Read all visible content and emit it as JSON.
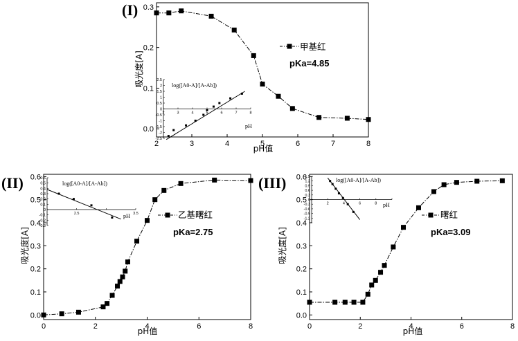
{
  "chart_data": [
    {
      "type": "line",
      "panel_label": "(I)",
      "xlabel": "pH值",
      "ylabel": "吸光度[A]",
      "xlim": [
        2,
        8
      ],
      "ylim": [
        -0.02,
        0.31
      ],
      "xticks": [
        2,
        3,
        4,
        5,
        6,
        7,
        8
      ],
      "yticks": [
        0.0,
        0.1,
        0.2,
        0.3
      ],
      "ytick_labels": [
        "0.0",
        "0.1",
        "0.2",
        "0.3"
      ],
      "legend": [
        "甲基红"
      ],
      "annotation": "pKa=4.85",
      "series": [
        {
          "name": "甲基红",
          "x": [
            2.0,
            2.35,
            2.7,
            3.55,
            4.2,
            4.75,
            5.0,
            5.45,
            5.85,
            6.6,
            7.4,
            8.0
          ],
          "y": [
            0.285,
            0.285,
            0.29,
            0.277,
            0.243,
            0.18,
            0.11,
            0.08,
            0.05,
            0.028,
            0.026,
            0.023
          ]
        }
      ],
      "inset": {
        "ylabel": "log([A0-A]/[A-Ab])",
        "xlabel": "pH",
        "xlim": [
          2,
          8
        ],
        "ylim": [
          -2.5,
          2.5
        ],
        "xticks": [
          2,
          3,
          4,
          5,
          6,
          7,
          8
        ],
        "yticks": [
          -2.5,
          -2.0,
          -1.5,
          -1.0,
          -0.5,
          0.0,
          0.5,
          1.0,
          1.5,
          2.0,
          2.5
        ],
        "points": {
          "x": [
            2.35,
            2.7,
            3.55,
            4.2,
            4.75,
            5.0,
            5.45,
            5.85,
            6.6,
            7.4
          ],
          "y": [
            -2.3,
            -1.8,
            -1.4,
            -1.0,
            -0.5,
            -0.1,
            0.2,
            0.5,
            0.9,
            1.3
          ]
        },
        "fit": {
          "x": [
            2.2,
            7.6
          ],
          "y": [
            -2.6,
            1.5
          ]
        }
      }
    },
    {
      "type": "line",
      "panel_label": "(II)",
      "xlabel": "pH值",
      "ylabel": "吸光度[A]",
      "xlim": [
        0,
        8
      ],
      "ylim": [
        -0.02,
        0.61
      ],
      "xticks": [
        0,
        2,
        4,
        6,
        8
      ],
      "yticks": [
        0.0,
        0.1,
        0.2,
        0.3,
        0.4,
        0.5,
        0.6
      ],
      "ytick_labels": [
        "0.0",
        "0.1",
        "0.2",
        "0.3",
        "0.4",
        "0.5",
        "0.6"
      ],
      "legend": [
        "乙基曙红"
      ],
      "annotation": "pKa=2.75",
      "series": [
        {
          "name": "乙基曙红",
          "x": [
            0.0,
            0.7,
            1.35,
            2.3,
            2.45,
            2.65,
            2.85,
            2.95,
            3.05,
            3.15,
            3.25,
            3.6,
            4.0,
            4.3,
            4.65,
            5.3,
            6.6,
            8.0
          ],
          "y": [
            0.0,
            0.005,
            0.012,
            0.035,
            0.05,
            0.085,
            0.125,
            0.145,
            0.165,
            0.19,
            0.23,
            0.32,
            0.41,
            0.5,
            0.54,
            0.57,
            0.585,
            0.583
          ]
        }
      ],
      "inset": {
        "ylabel": "log([A0-A]/[A-Ab])",
        "xlabel": "pH",
        "xlim": [
          2.0,
          3.5
        ],
        "ylim": [
          -0.3,
          0.6
        ],
        "xticks": [
          2.0,
          2.5,
          3.0,
          3.5
        ],
        "xtick_labels": [
          "",
          "2.5",
          "",
          "3.5"
        ],
        "yticks": [
          -0.3,
          -0.2,
          -0.1,
          0.0,
          0.1,
          0.2,
          0.3,
          0.4,
          0.5,
          0.6
        ],
        "points": {
          "x": [
            2.2,
            2.45,
            2.75,
            3.1
          ],
          "y": [
            0.3,
            0.2,
            0.08,
            -0.15
          ]
        },
        "fit": {
          "x": [
            2.0,
            3.25
          ],
          "y": [
            0.38,
            -0.18
          ]
        }
      }
    },
    {
      "type": "line",
      "panel_label": "(III)",
      "xlabel": "pH值",
      "ylabel": "吸光度[A]",
      "xlim": [
        0,
        8
      ],
      "ylim": [
        -0.02,
        0.61
      ],
      "xticks": [
        0,
        2,
        4,
        6,
        8
      ],
      "yticks": [
        0.0,
        0.1,
        0.2,
        0.3,
        0.4,
        0.5,
        0.6
      ],
      "ytick_labels": [
        "0.0",
        "0.1",
        "0.2",
        "0.3",
        "0.4",
        "0.5",
        "0.6"
      ],
      "legend": [
        "曙红"
      ],
      "annotation": "pKa=3.09",
      "series": [
        {
          "name": "曙红",
          "x": [
            0.0,
            1.0,
            1.4,
            1.75,
            2.1,
            2.3,
            2.45,
            2.6,
            2.8,
            2.95,
            3.3,
            3.7,
            4.3,
            4.9,
            5.3,
            5.8,
            6.6,
            7.6
          ],
          "y": [
            0.055,
            0.055,
            0.055,
            0.055,
            0.055,
            0.09,
            0.13,
            0.15,
            0.185,
            0.215,
            0.295,
            0.38,
            0.465,
            0.535,
            0.565,
            0.575,
            0.58,
            0.582
          ]
        }
      ],
      "inset": {
        "ylabel": "log([A0-A]/[A-Ab])",
        "xlabel": "pH",
        "xlim": [
          0,
          10
        ],
        "ylim": [
          -1.5,
          1.5
        ],
        "xticks": [
          0,
          2,
          4,
          6,
          8,
          10
        ],
        "xtick_labels": [
          "",
          "2",
          "4",
          "6",
          "8",
          ""
        ],
        "yticks": [
          -1.2,
          -0.9,
          -0.6,
          -0.3,
          0.0,
          0.3,
          0.6,
          0.9,
          1.2,
          1.5
        ],
        "points": {
          "x": [
            2.3,
            2.6,
            3.0,
            3.4,
            3.9,
            4.5,
            5.2
          ],
          "y": [
            1.2,
            1.0,
            0.7,
            0.4,
            0.1,
            -0.3,
            -0.8
          ]
        },
        "fit": {
          "x": [
            2.0,
            6.0
          ],
          "y": [
            1.4,
            -1.3
          ]
        }
      }
    }
  ]
}
